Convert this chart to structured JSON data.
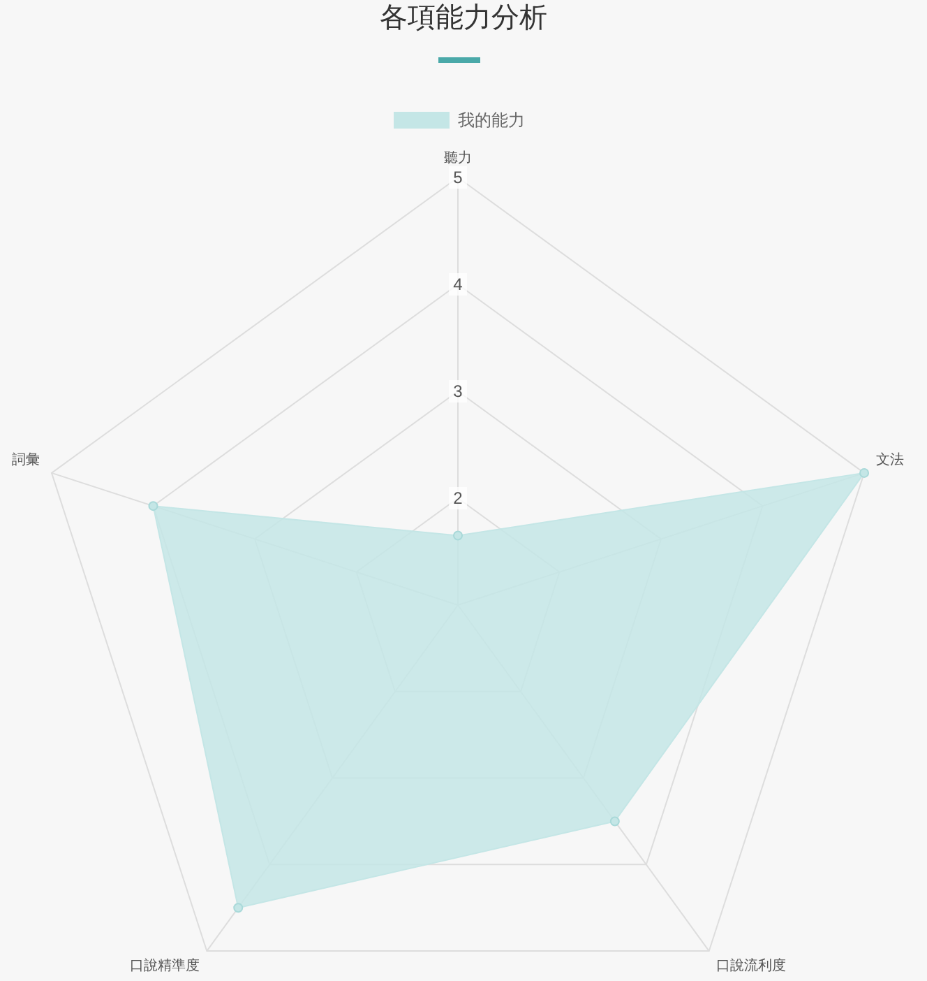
{
  "chart_data": {
    "type": "radar",
    "title": "各項能力分析",
    "categories": [
      "聽力",
      "文法",
      "口說流利度",
      "口說精準度",
      "詞彙"
    ],
    "series": [
      {
        "name": "我的能力",
        "color": "#c4e6e6",
        "values": [
          1.65,
          5,
          3.5,
          4.5,
          4
        ]
      }
    ],
    "ylim": [
      1,
      5
    ],
    "yticks": [
      2,
      3,
      4,
      5
    ],
    "grid": true,
    "legend": "top",
    "marker": "circle"
  }
}
